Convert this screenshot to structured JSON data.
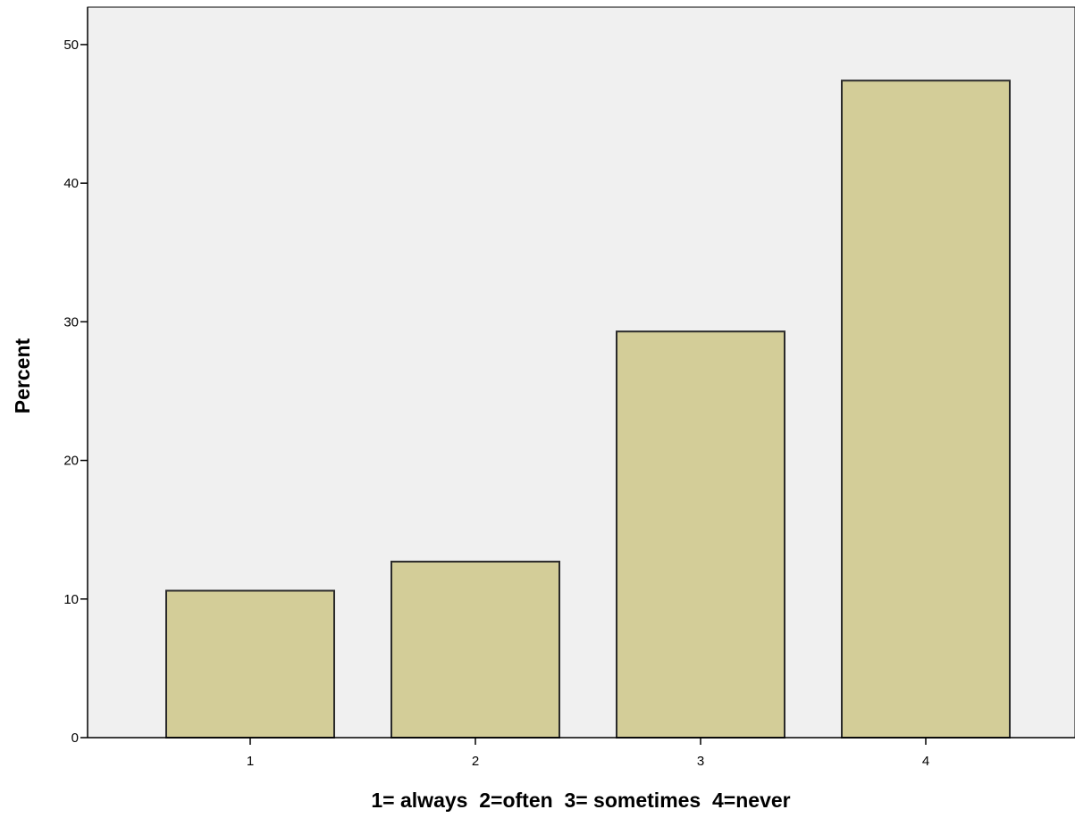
{
  "chart_data": {
    "type": "bar",
    "title": "",
    "xlabel": "1= always  2=often  3= sometimes  4=never",
    "ylabel": "Percent",
    "categories": [
      "1",
      "2",
      "3",
      "4"
    ],
    "values": [
      10.6,
      12.7,
      29.3,
      47.4
    ],
    "ylim": [
      0,
      52.7
    ],
    "yticks": [
      "0",
      "10",
      "20",
      "30",
      "40",
      "50"
    ],
    "ytick_values": [
      0,
      10,
      20,
      30,
      40,
      50
    ],
    "grid": false,
    "legend": "none",
    "colors": {
      "bar_fill": "#d3cd98",
      "bar_stroke": "#2a2a2a",
      "plot_background": "#f0f0f0",
      "page_background": "#ffffff"
    }
  }
}
